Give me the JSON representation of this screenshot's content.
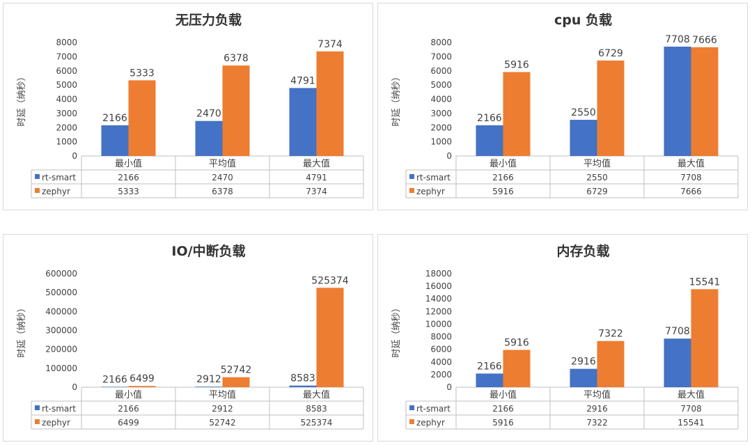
{
  "chart_data": [
    {
      "type": "bar",
      "title": "无压力负载",
      "ylabel": "时延（纳秒）",
      "ylim": [
        0,
        8000
      ],
      "yticks": [
        0,
        1000,
        2000,
        3000,
        4000,
        5000,
        6000,
        7000,
        8000
      ],
      "categories": [
        "最小值",
        "平均值",
        "最大值"
      ],
      "series": [
        {
          "name": "rt-smart",
          "color": "#4472C4",
          "values": [
            2166,
            2470,
            4791
          ]
        },
        {
          "name": "zephyr",
          "color": "#ED7D31",
          "values": [
            5333,
            6378,
            7374
          ]
        }
      ],
      "legend": "data-table"
    },
    {
      "type": "bar",
      "title": "cpu 负载",
      "ylabel": "时延（纳秒）",
      "ylim": [
        0,
        8000
      ],
      "yticks": [
        0,
        1000,
        2000,
        3000,
        4000,
        5000,
        6000,
        7000,
        8000
      ],
      "categories": [
        "最小值",
        "平均值",
        "最大值"
      ],
      "series": [
        {
          "name": "rt-smart",
          "color": "#4472C4",
          "values": [
            2166,
            2550,
            7708
          ]
        },
        {
          "name": "zephyr",
          "color": "#ED7D31",
          "values": [
            5916,
            6729,
            7666
          ]
        }
      ],
      "legend": "data-table"
    },
    {
      "type": "bar",
      "title": "IO/中断负载",
      "ylabel": "时延（纳秒）",
      "ylim": [
        0,
        600000
      ],
      "yticks": [
        0,
        100000,
        200000,
        300000,
        400000,
        500000,
        600000
      ],
      "categories": [
        "最小值",
        "平均值",
        "最大值"
      ],
      "series": [
        {
          "name": "rt-smart",
          "color": "#4472C4",
          "values": [
            2166,
            2912,
            8583
          ]
        },
        {
          "name": "zephyr",
          "color": "#ED7D31",
          "values": [
            6499,
            52742,
            525374
          ]
        }
      ],
      "legend": "data-table"
    },
    {
      "type": "bar",
      "title": "内存负载",
      "ylabel": "时延（纳秒）",
      "ylim": [
        0,
        18000
      ],
      "yticks": [
        0,
        2000,
        4000,
        6000,
        8000,
        10000,
        12000,
        14000,
        16000,
        18000
      ],
      "categories": [
        "最小值",
        "平均值",
        "最大值"
      ],
      "series": [
        {
          "name": "rt-smart",
          "color": "#4472C4",
          "values": [
            2166,
            2916,
            7708
          ]
        },
        {
          "name": "zephyr",
          "color": "#ED7D31",
          "values": [
            5916,
            7322,
            15541
          ]
        }
      ],
      "legend": "data-table"
    }
  ]
}
